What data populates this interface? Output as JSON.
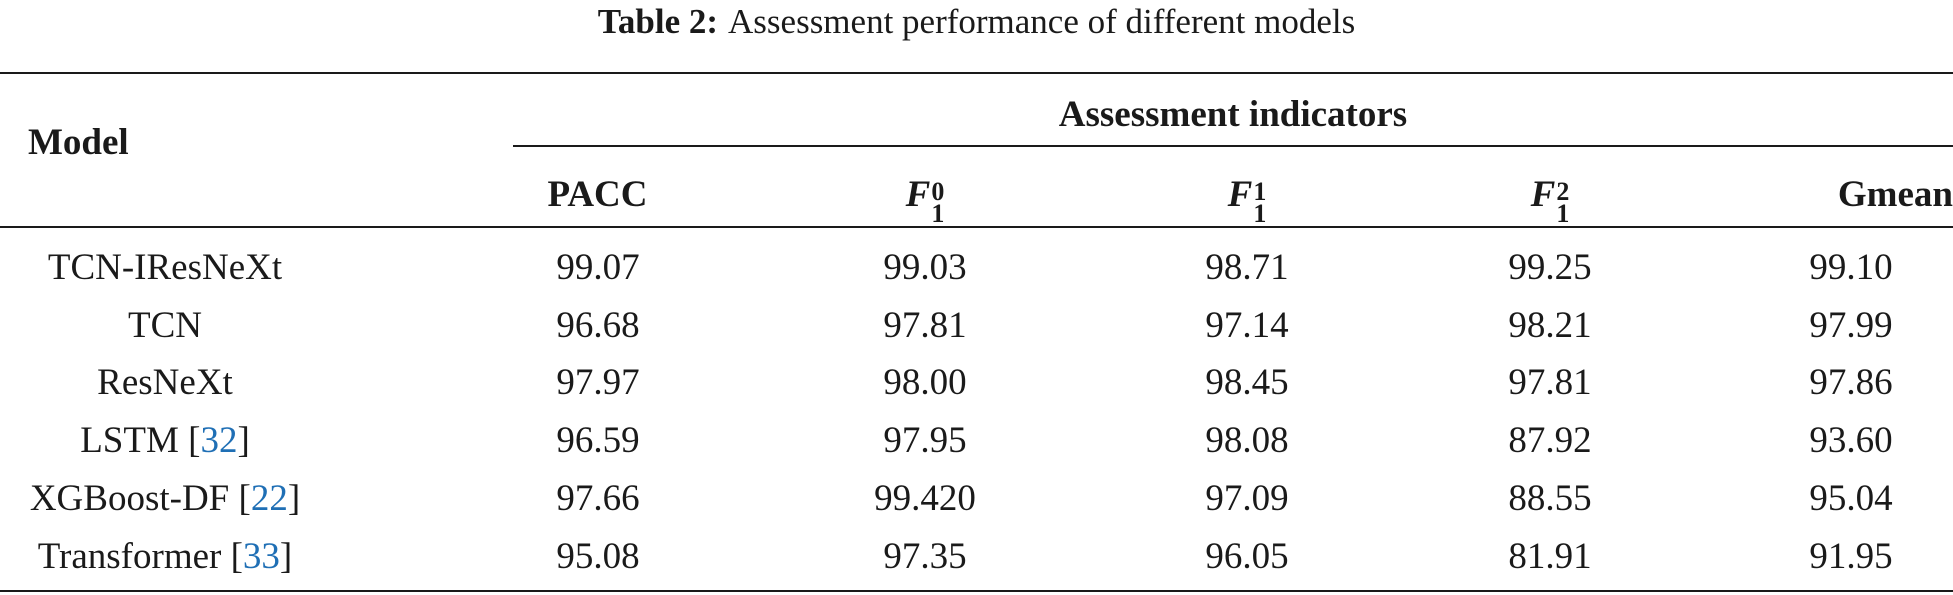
{
  "caption": {
    "label": "Table 2:",
    "text": "Assessment performance of different models"
  },
  "header": {
    "model": "Model",
    "group": "Assessment indicators",
    "columns": [
      {
        "label": "PACC"
      },
      {
        "base": "F",
        "sup": "0",
        "sub": "1"
      },
      {
        "base": "F",
        "sup": "1",
        "sub": "1"
      },
      {
        "base": "F",
        "sup": "2",
        "sub": "1"
      },
      {
        "label": "Gmean"
      }
    ]
  },
  "rows": [
    {
      "model": "TCN-IResNeXt",
      "ref": "",
      "values": [
        "99.07",
        "99.03",
        "98.71",
        "99.25",
        "99.10"
      ]
    },
    {
      "model": "TCN",
      "ref": "",
      "values": [
        "96.68",
        "97.81",
        "97.14",
        "98.21",
        "97.99"
      ]
    },
    {
      "model": "ResNeXt",
      "ref": "",
      "values": [
        "97.97",
        "98.00",
        "98.45",
        "97.81",
        "97.86"
      ]
    },
    {
      "model": "LSTM",
      "ref": "32",
      "values": [
        "96.59",
        "97.95",
        "98.08",
        "87.92",
        "93.60"
      ]
    },
    {
      "model": "XGBoost-DF",
      "ref": "22",
      "values": [
        "97.66",
        "99.420",
        "97.09",
        "88.55",
        "95.04"
      ]
    },
    {
      "model": "Transformer",
      "ref": "33",
      "values": [
        "95.08",
        "97.35",
        "96.05",
        "81.91",
        "91.95"
      ]
    }
  ],
  "colors": {
    "text": "#1a1a1a",
    "citation": "#1f6fb5"
  }
}
